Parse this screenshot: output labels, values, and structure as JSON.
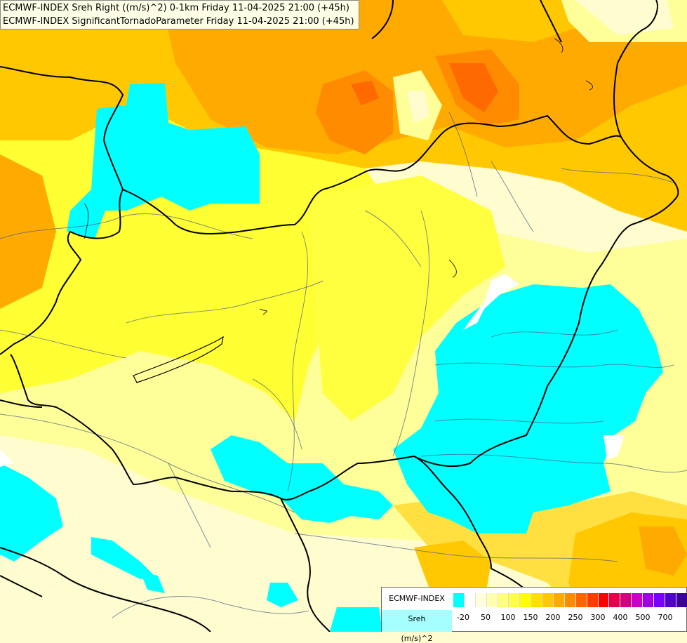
{
  "header": {
    "line1": "ECMWF-INDEX Sreh Right ((m/s)^2) 0-1km Friday 11-04-2025 21:00 (+45h)",
    "line2": "ECMWF-INDEX SignificantTornadoParameter Friday 11-04-2025 21:00 (+45h)"
  },
  "legend": {
    "source": "ECMWF-INDEX",
    "name": "Sreh",
    "unit": "(m/s)^2",
    "colors": [
      "#00ffff",
      "#ffffff",
      "#ffffe0",
      "#ffffb0",
      "#ffff80",
      "#ffff40",
      "#ffff00",
      "#ffe000",
      "#ffc800",
      "#ffaa00",
      "#ff8c00",
      "#ff6400",
      "#ff3c00",
      "#ff0000",
      "#e6004c",
      "#d20080",
      "#c800c8",
      "#a000e6",
      "#7800ff",
      "#5000c8",
      "#3c0096",
      "#1e0078",
      "#000064"
    ],
    "ticks": [
      "-20",
      "50",
      "100",
      "150",
      "200",
      "250",
      "300",
      "400",
      "500",
      "700"
    ]
  },
  "map": {
    "fill_colors": {
      "base": "#fffcd0",
      "light_yellow": "#ffff99",
      "yellow": "#ffff33",
      "gold": "#ffe000",
      "amber": "#ffc800",
      "orange": "#ffaa00",
      "dark_orange": "#ff8c00",
      "red_orange": "#ff6a00",
      "cyan": "#00ffff",
      "white": "#ffffff",
      "border": "#000000",
      "river": "#4a6080"
    }
  }
}
